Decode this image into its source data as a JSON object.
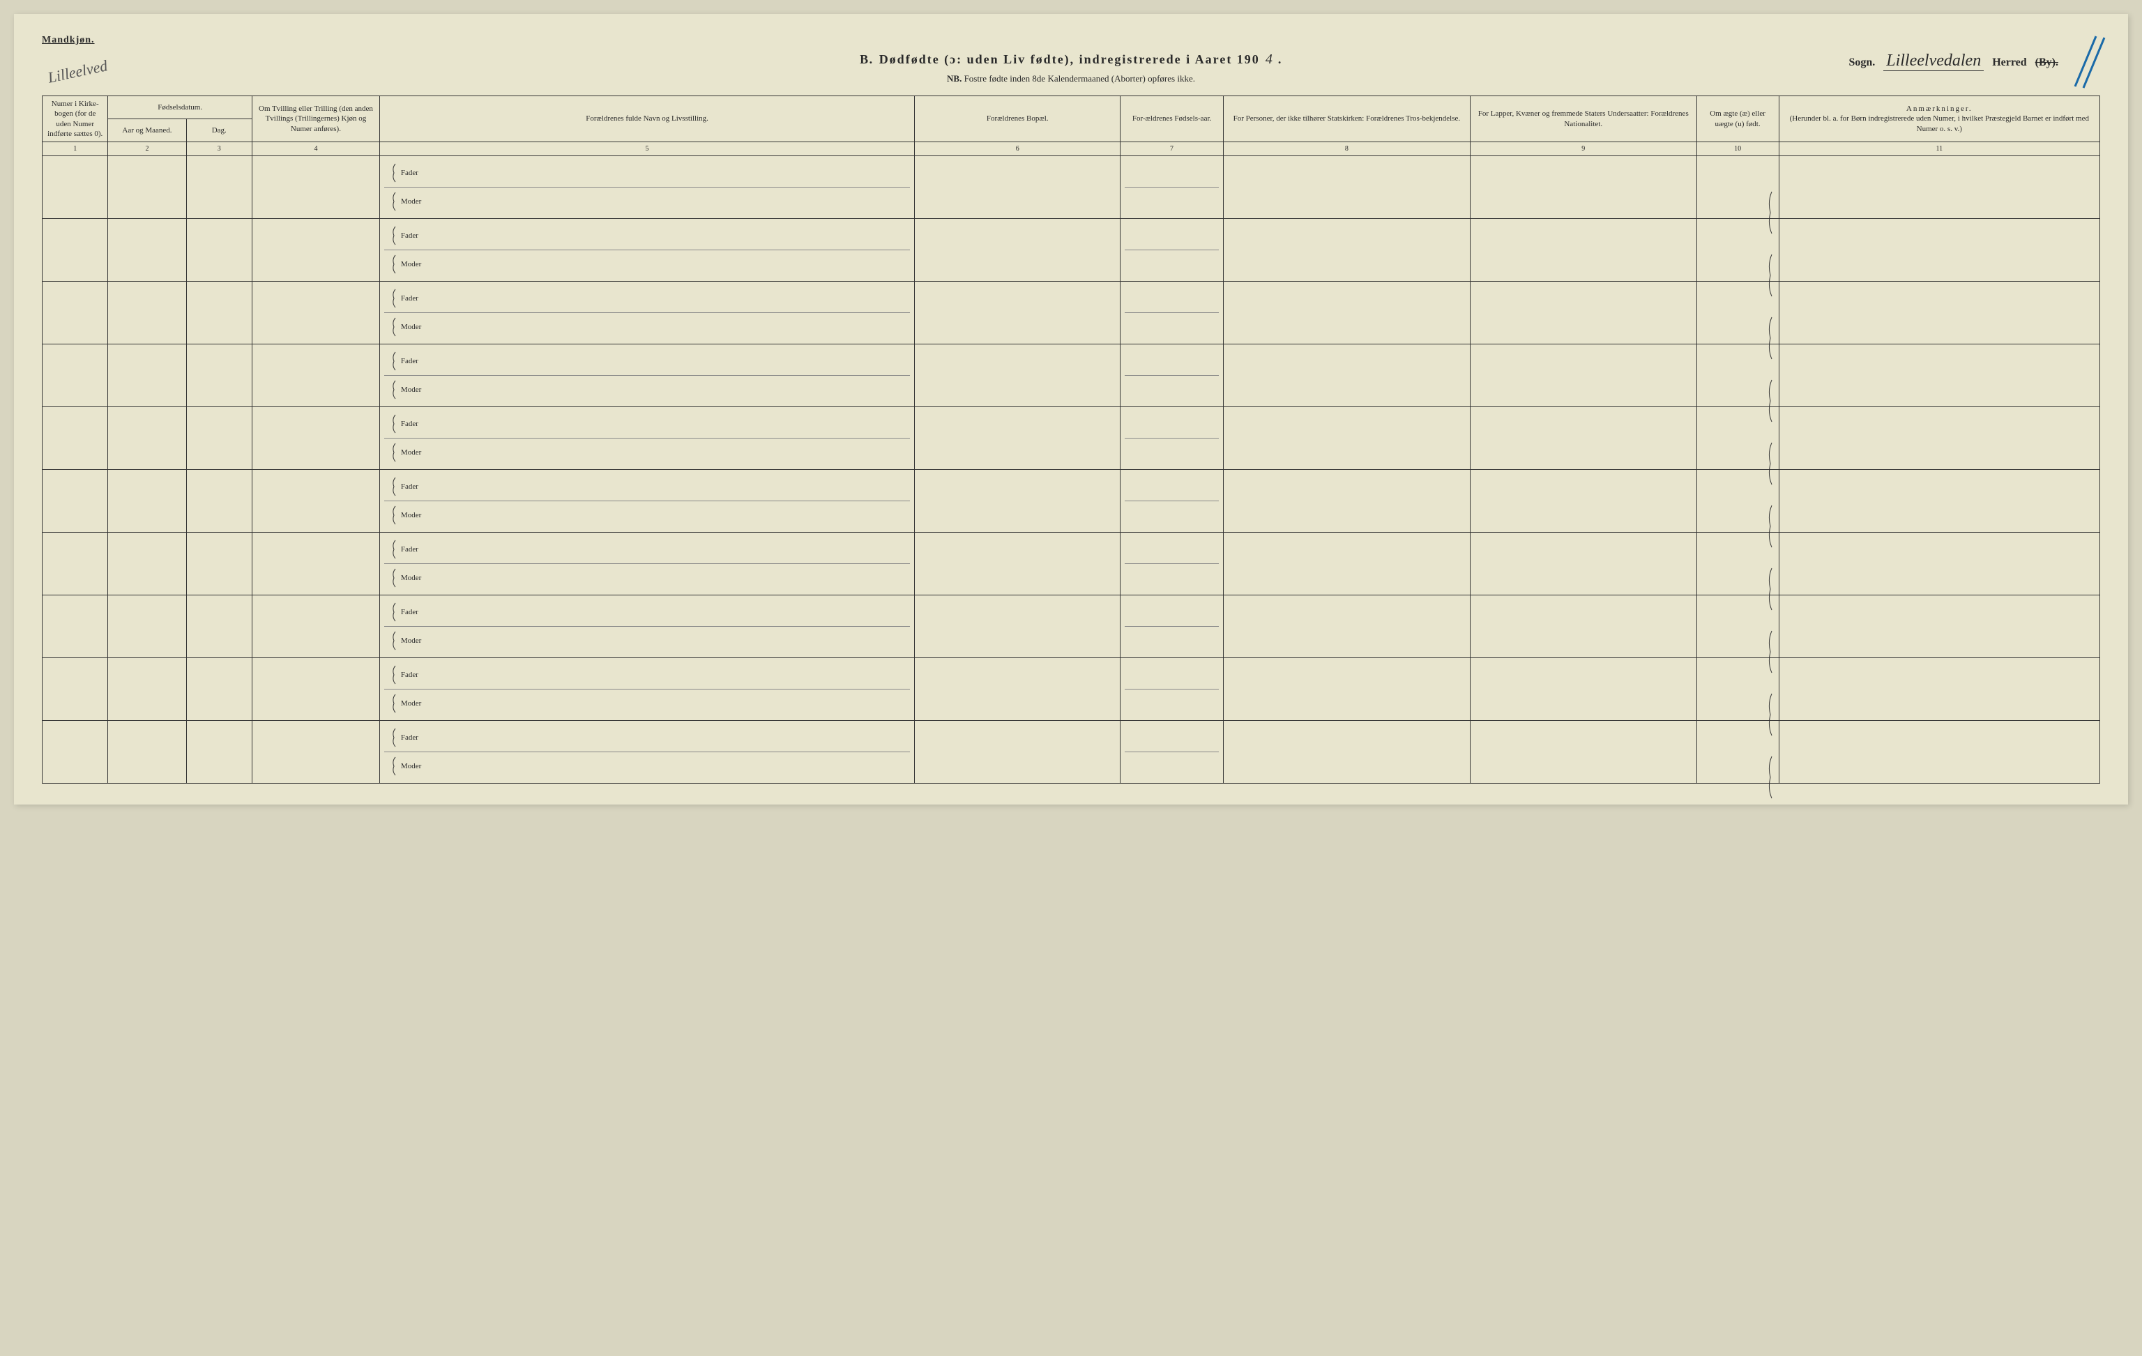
{
  "corner_label": "Mandkjøn.",
  "title_prefix": "B.",
  "title_main": "Dødfødte (ɔ: uden Liv fødte), indregistrerede i Aaret 190",
  "year_handwritten": "4",
  "title_suffix": ".",
  "sogn_label": "Sogn.",
  "sogn_handwritten": "Lilleelvedalen",
  "herred_label": "Herred",
  "herred_strike": "(By).",
  "subtitle_nb": "NB.",
  "subtitle_text": "Fostre fødte inden 8de Kalendermaaned (Aborter) opføres ikke.",
  "hand_corner_left": "Lilleelved",
  "columns": {
    "c1": "Numer i Kirke-bogen (for de uden Numer indførte sættes 0).",
    "c2_group": "Fødselsdatum.",
    "c2": "Aar og Maaned.",
    "c3": "Dag.",
    "c4": "Om Tvilling eller Trilling (den anden Tvillings (Trillingernes) Kjøn og Numer anføres).",
    "c5": "Forældrenes fulde Navn og Livsstilling.",
    "c6": "Forældrenes Bopæl.",
    "c7": "For-ældrenes Fødsels-aar.",
    "c8": "For Personer, der ikke tilhører Statskirken: Forældrenes Tros-bekjendelse.",
    "c9": "For Lapper, Kvæner og fremmede Staters Undersaatter: Forældrenes Nationalitet.",
    "c10": "Om ægte (æ) eller uægte (u) født.",
    "c11_head": "Anmærkninger.",
    "c11_sub": "(Herunder bl. a. for Børn indregistrerede uden Numer, i hvilket Præstegjeld Barnet er indført med Numer o. s. v.)"
  },
  "col_numbers": [
    "1",
    "2",
    "3",
    "4",
    "5",
    "6",
    "7",
    "8",
    "9",
    "10",
    "11"
  ],
  "row_labels": {
    "fader": "Fader",
    "moder": "Moder"
  },
  "row_count": 10,
  "diag_color": "#1a6aa8"
}
